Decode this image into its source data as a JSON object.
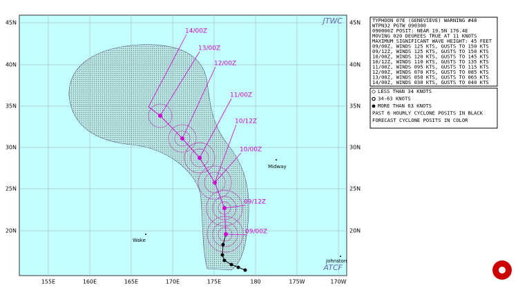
{
  "map": {
    "agency_label": "JTWC",
    "model_label": "ATCF",
    "latitude_labels": [
      "45N",
      "40N",
      "35N",
      "30N",
      "25N",
      "20N"
    ],
    "longitude_labels": [
      "155E",
      "160E",
      "165E",
      "170E",
      "175E",
      "180",
      "175W",
      "170W"
    ],
    "places": [
      "Midway",
      "Wake",
      "Johnston"
    ],
    "forecast_times": [
      "14/00Z",
      "13/00Z",
      "12/00Z",
      "11/00Z",
      "10/12Z",
      "10/00Z",
      "09/12Z",
      "09/00Z"
    ],
    "warning_lines": [
      "TYPHOON 07E (GENEVIEVE) WARNING #48",
      "WTPN32 PGTW 090300",
      "090000Z POSIT: NEAR 19.5N 176.4E",
      "MOVING 020 DEGREES TRUE AT 11 KNOTS",
      "MAXIMUM SIGNIFICANT WAVE HEIGHT: 45 FEET",
      "09/00Z, WINDS 125 KTS, GUSTS TO 150 KTS",
      "09/12Z, WINDS 125 KTS, GUSTS TO 150 KTS",
      "10/00Z, WINDS 120 KTS, GUSTS TO 145 KTS",
      "10/12Z, WINDS 110 KTS, GUSTS TO 135 KTS",
      "11/00Z, WINDS 095 KTS, GUSTS TO 115 KTS",
      "12/00Z, WINDS 070 KTS, GUSTS TO 085 KTS",
      "13/00Z, WINDS 050 KTS, GUSTS TO 065 KTS",
      "14/00Z, WINDS 030 KTS, GUSTS TO 040 KTS"
    ],
    "legend_lines": [
      "LESS THAN 34 KNOTS",
      "34-63 KNOTS",
      "MORE THAN 63 KNOTS",
      "PAST 6 HOURLY CYCLONE POSITS IN BLACK",
      "FORECAST CYCLONE POSITS IN COLOR"
    ]
  }
}
